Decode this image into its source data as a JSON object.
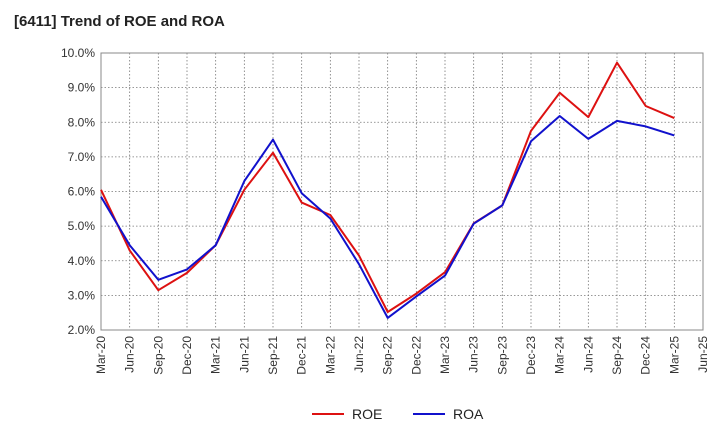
{
  "chart_data": {
    "type": "line",
    "title": "[6411]  Trend of ROE and ROA",
    "xlabel": "",
    "ylabel": "",
    "ylim": [
      2.0,
      10.0
    ],
    "y_ticks": [
      "2.0%",
      "3.0%",
      "4.0%",
      "5.0%",
      "6.0%",
      "7.0%",
      "8.0%",
      "9.0%",
      "10.0%"
    ],
    "categories": [
      "Mar-20",
      "Jun-20",
      "Sep-20",
      "Dec-20",
      "Mar-21",
      "Jun-21",
      "Sep-21",
      "Dec-21",
      "Mar-22",
      "Jun-22",
      "Sep-22",
      "Dec-22",
      "Mar-23",
      "Jun-23",
      "Sep-23",
      "Dec-23",
      "Mar-24",
      "Jun-24",
      "Sep-24",
      "Dec-24",
      "Mar-25",
      "Jun-25"
    ],
    "grid": "dotted",
    "legend_position": "bottom",
    "series": [
      {
        "name": "ROE",
        "color": "#dd1111",
        "values": [
          6.05,
          4.3,
          3.15,
          3.65,
          4.45,
          6.05,
          7.12,
          5.68,
          5.32,
          4.15,
          2.52,
          3.05,
          3.67,
          5.08,
          5.6,
          7.75,
          8.85,
          8.15,
          9.72,
          8.47,
          8.12,
          null
        ]
      },
      {
        "name": "ROA",
        "color": "#1111cc",
        "values": [
          5.85,
          4.45,
          3.45,
          3.75,
          4.45,
          6.3,
          7.5,
          5.95,
          5.22,
          3.9,
          2.35,
          2.97,
          3.57,
          5.07,
          5.6,
          7.45,
          8.18,
          7.52,
          8.04,
          7.88,
          7.62,
          null
        ]
      }
    ]
  }
}
